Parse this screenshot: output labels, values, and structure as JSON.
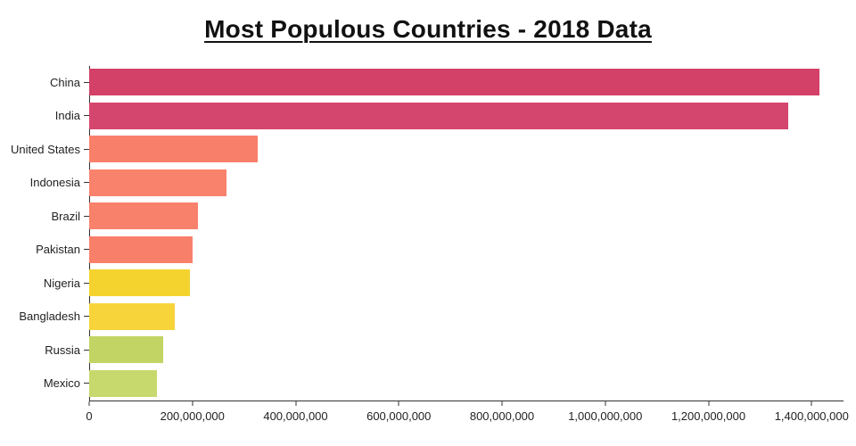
{
  "chart_data": {
    "type": "bar",
    "orientation": "horizontal",
    "title": "Most Populous Countries - 2018 Data",
    "categories": [
      "China",
      "India",
      "United States",
      "Indonesia",
      "Brazil",
      "Pakistan",
      "Nigeria",
      "Bangladesh",
      "Russia",
      "Mexico"
    ],
    "values": [
      1415045928,
      1354051854,
      326766748,
      266794980,
      210867954,
      200813818,
      195875237,
      166368149,
      143964709,
      130759074
    ],
    "colors": [
      "#d34068",
      "#d5466e",
      "#f8806b",
      "#f9826d",
      "#f8816c",
      "#f8806b",
      "#f5d32f",
      "#f6d43a",
      "#c2d464",
      "#c7d96d"
    ],
    "xlabel": "",
    "ylabel": "",
    "xlim": [
      0,
      1460000000
    ],
    "xticks": [
      {
        "value": 0,
        "label": "0"
      },
      {
        "value": 200000000,
        "label": "200,000,000"
      },
      {
        "value": 400000000,
        "label": "400,000,000"
      },
      {
        "value": 600000000,
        "label": "600,000,000"
      },
      {
        "value": 800000000,
        "label": "800,000,000"
      },
      {
        "value": 1000000000,
        "label": "1,000,000,000"
      },
      {
        "value": 1200000000,
        "label": "1,200,000,000"
      },
      {
        "value": 1400000000,
        "label": "1,400,000,000"
      }
    ],
    "grid": false,
    "legend": false
  }
}
